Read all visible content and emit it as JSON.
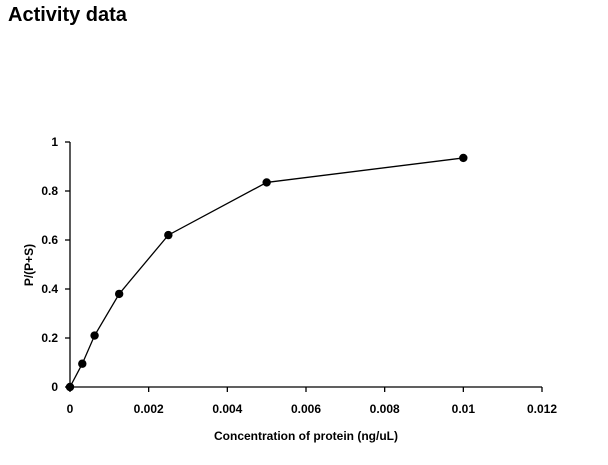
{
  "page": {
    "title": "Activity data"
  },
  "chart_data": {
    "type": "scatter",
    "title": "",
    "xlabel": "Concentration of protein (ng/uL)",
    "ylabel": "P/(P+S)",
    "xlim": [
      0,
      0.012
    ],
    "ylim": [
      0,
      1
    ],
    "xticks": [
      0,
      0.002,
      0.004,
      0.006,
      0.008,
      0.01,
      0.012
    ],
    "yticks": [
      0,
      0.2,
      0.4,
      0.6,
      0.8,
      1
    ],
    "xtick_labels": [
      "0",
      "0.002",
      "0.004",
      "0.006",
      "0.008",
      "0.01",
      "0.012"
    ],
    "ytick_labels": [
      "0",
      "0.2",
      "0.4",
      "0.6",
      "0.8",
      "1"
    ],
    "grid": false,
    "legend": false,
    "series": [
      {
        "x": [
          0,
          0.0003125,
          0.000625,
          0.00125,
          0.0025,
          0.005,
          0.01
        ],
        "y": [
          0,
          0.095,
          0.21,
          0.38,
          0.62,
          0.835,
          0.935
        ],
        "marker": "circle",
        "line": true,
        "color": "#000000"
      }
    ]
  }
}
